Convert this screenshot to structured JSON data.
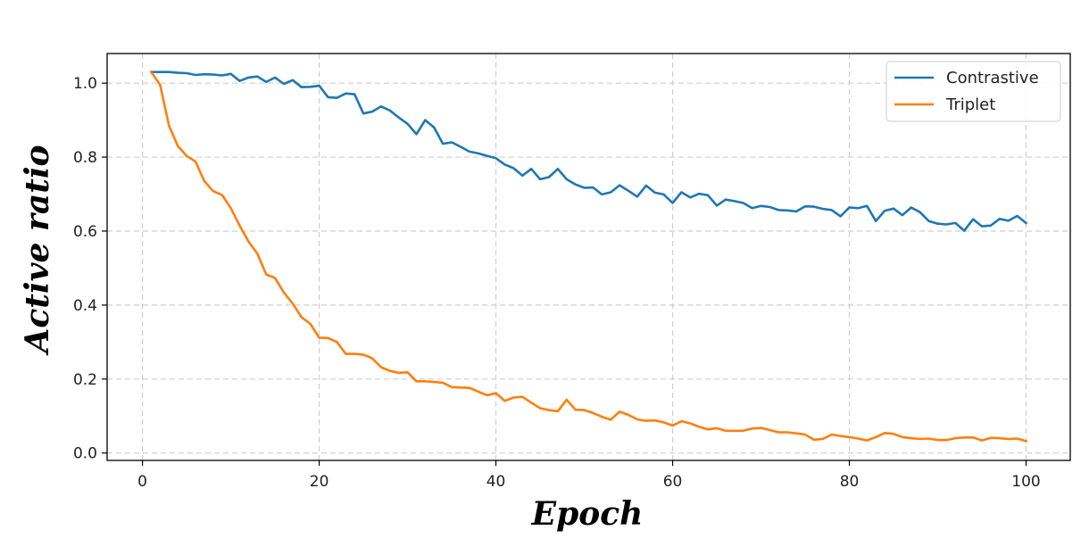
{
  "chart_data": {
    "type": "line",
    "xlabel": "Epoch",
    "ylabel": "Active ratio",
    "xlim": [
      -4,
      105
    ],
    "ylim": [
      -0.02,
      1.08
    ],
    "xticks": [
      0,
      20,
      40,
      60,
      80,
      100
    ],
    "yticks": [
      0.0,
      0.2,
      0.4,
      0.6,
      0.8,
      1.0
    ],
    "xtick_labels": [
      "0",
      "20",
      "40",
      "60",
      "80",
      "100"
    ],
    "ytick_labels": [
      "0.0",
      "0.2",
      "0.4",
      "0.6",
      "0.8",
      "1.0"
    ],
    "grid": true,
    "legend_position": "top-right",
    "x": [
      1,
      2,
      3,
      4,
      5,
      6,
      7,
      8,
      9,
      10,
      11,
      12,
      13,
      14,
      15,
      16,
      17,
      18,
      19,
      20,
      21,
      22,
      23,
      24,
      25,
      26,
      27,
      28,
      29,
      30,
      31,
      32,
      33,
      34,
      35,
      36,
      37,
      38,
      39,
      40,
      41,
      42,
      43,
      44,
      45,
      46,
      47,
      48,
      49,
      50,
      51,
      52,
      53,
      54,
      55,
      56,
      57,
      58,
      59,
      60,
      61,
      62,
      63,
      64,
      65,
      66,
      67,
      68,
      69,
      70,
      71,
      72,
      73,
      74,
      75,
      76,
      77,
      78,
      79,
      80,
      81,
      82,
      83,
      84,
      85,
      86,
      87,
      88,
      89,
      90,
      91,
      92,
      93,
      94,
      95,
      96,
      97,
      98,
      99,
      100
    ],
    "series": [
      {
        "name": "Contrastive",
        "color": "#1f77b4",
        "values": [
          1.03,
          1.03,
          1.03,
          1.028,
          1.027,
          1.022,
          1.024,
          1.023,
          1.021,
          1.025,
          1.006,
          1.015,
          1.018,
          1.003,
          1.015,
          0.998,
          1.008,
          0.989,
          0.99,
          0.993,
          0.962,
          0.96,
          0.972,
          0.97,
          0.918,
          0.923,
          0.937,
          0.926,
          0.907,
          0.89,
          0.862,
          0.9,
          0.88,
          0.836,
          0.84,
          0.828,
          0.815,
          0.81,
          0.803,
          0.797,
          0.78,
          0.77,
          0.75,
          0.768,
          0.74,
          0.746,
          0.768,
          0.74,
          0.726,
          0.717,
          0.718,
          0.699,
          0.705,
          0.724,
          0.709,
          0.693,
          0.723,
          0.704,
          0.699,
          0.676,
          0.705,
          0.691,
          0.701,
          0.697,
          0.669,
          0.685,
          0.681,
          0.676,
          0.662,
          0.668,
          0.665,
          0.657,
          0.656,
          0.653,
          0.667,
          0.666,
          0.66,
          0.657,
          0.64,
          0.664,
          0.662,
          0.668,
          0.627,
          0.655,
          0.661,
          0.643,
          0.664,
          0.651,
          0.627,
          0.62,
          0.618,
          0.622,
          0.601,
          0.632,
          0.613,
          0.615,
          0.633,
          0.628,
          0.641,
          0.622
        ]
      },
      {
        "name": "Triplet",
        "color": "#ff7f0e",
        "values": [
          1.03,
          0.995,
          0.885,
          0.83,
          0.803,
          0.788,
          0.735,
          0.708,
          0.698,
          0.662,
          0.615,
          0.572,
          0.539,
          0.483,
          0.473,
          0.434,
          0.404,
          0.367,
          0.349,
          0.312,
          0.311,
          0.3,
          0.268,
          0.268,
          0.266,
          0.256,
          0.232,
          0.222,
          0.217,
          0.218,
          0.194,
          0.194,
          0.192,
          0.19,
          0.178,
          0.177,
          0.176,
          0.166,
          0.156,
          0.162,
          0.141,
          0.15,
          0.152,
          0.136,
          0.121,
          0.116,
          0.113,
          0.144,
          0.117,
          0.116,
          0.108,
          0.098,
          0.09,
          0.112,
          0.103,
          0.091,
          0.087,
          0.088,
          0.083,
          0.074,
          0.086,
          0.08,
          0.071,
          0.064,
          0.067,
          0.06,
          0.06,
          0.06,
          0.066,
          0.068,
          0.062,
          0.056,
          0.056,
          0.053,
          0.05,
          0.036,
          0.038,
          0.05,
          0.046,
          0.043,
          0.039,
          0.034,
          0.043,
          0.054,
          0.052,
          0.043,
          0.04,
          0.038,
          0.039,
          0.035,
          0.035,
          0.04,
          0.042,
          0.042,
          0.034,
          0.041,
          0.04,
          0.038,
          0.039,
          0.032
        ]
      }
    ]
  }
}
